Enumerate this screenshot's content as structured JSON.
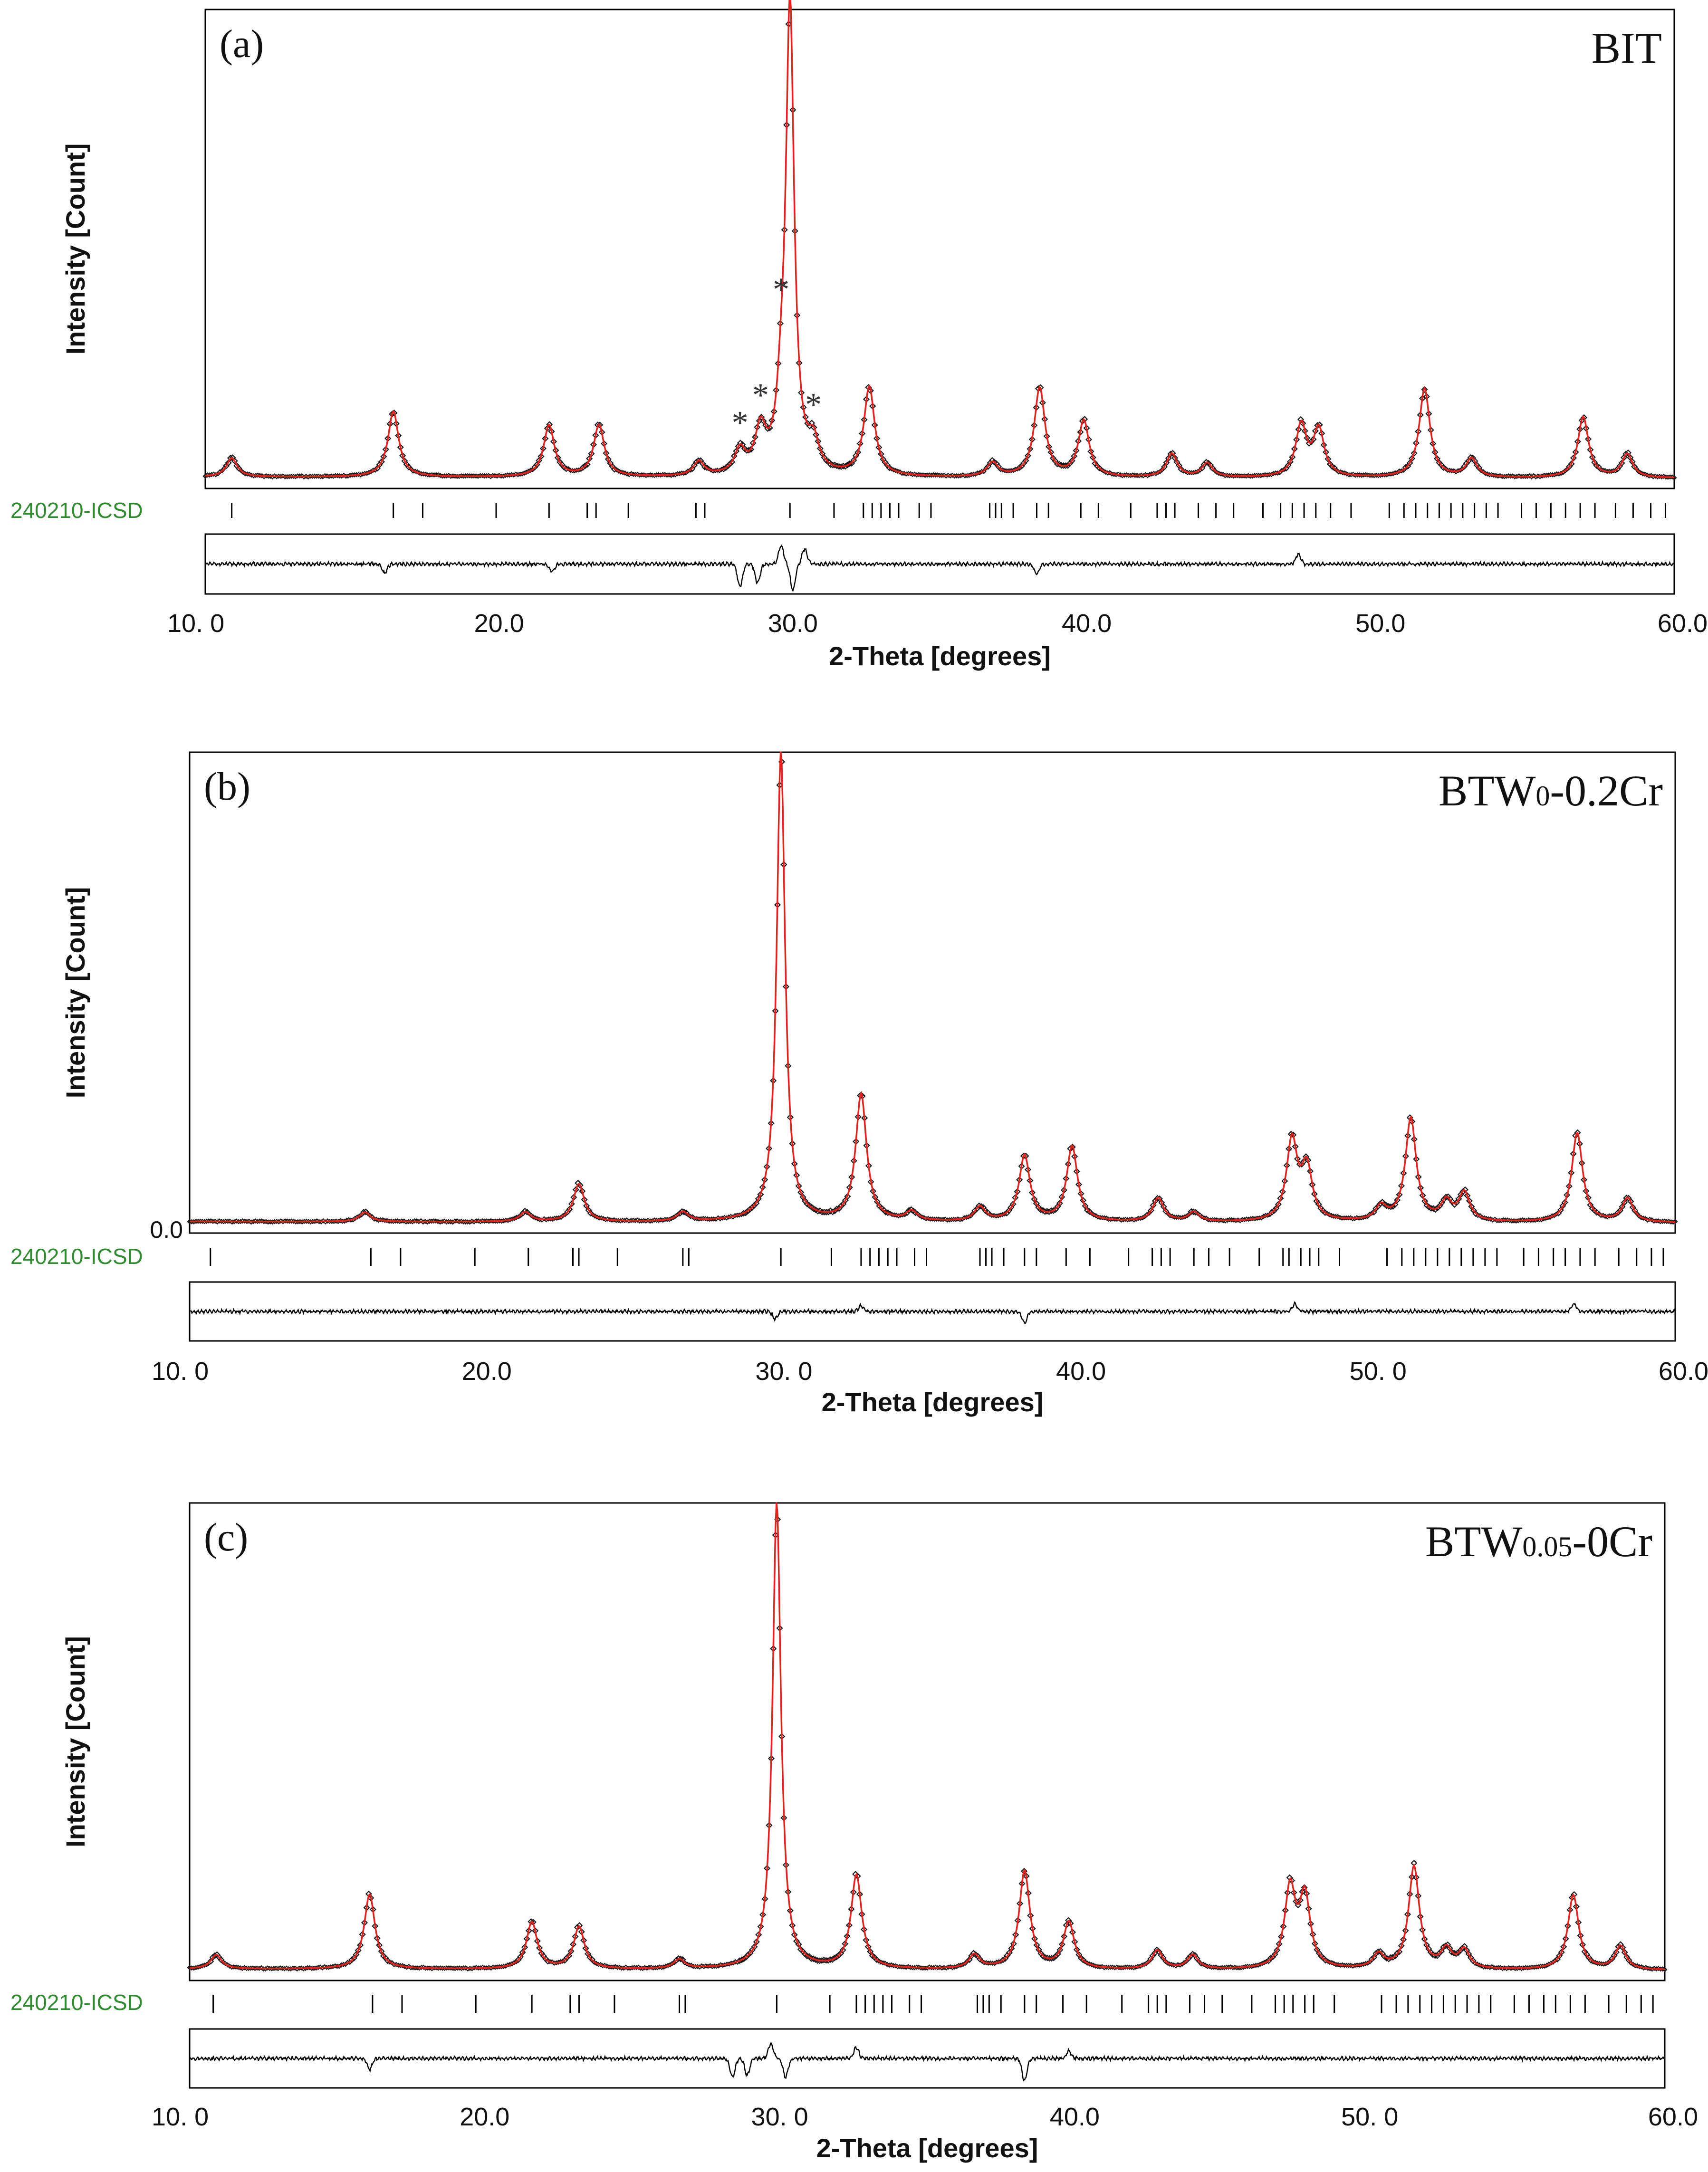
{
  "panels": [
    {
      "panel_label": "(a)",
      "sample": "BIT",
      "sample_sub": "",
      "sample_suffix": "",
      "ylabel": "Intensity [Count]",
      "xlabel": "2-Theta [degrees]",
      "phase_label": "240210-ICSD",
      "y_zero_label": "",
      "x_ticks": [
        "10. 0",
        "20.0",
        "30.0",
        "40.0",
        "50.0",
        "60.0"
      ],
      "impurity_marker": "*",
      "impurity_peaks": [
        28.2,
        28.9,
        29.6,
        30.7
      ]
    },
    {
      "panel_label": "(b)",
      "sample": "BTW",
      "sample_sub": "0",
      "sample_suffix": "-0.2Cr",
      "ylabel": "Intensity [Count]",
      "xlabel": "2-Theta [degrees]",
      "phase_label": "240210-ICSD",
      "y_zero_label": "0.0",
      "x_ticks": [
        "10. 0",
        "20.0",
        "30. 0",
        "40.0",
        "50. 0",
        "60.0"
      ],
      "impurity_marker": "",
      "impurity_peaks": []
    },
    {
      "panel_label": "(c)",
      "sample": "BTW",
      "sample_sub": "0.05",
      "sample_suffix": "-0Cr",
      "ylabel": "Intensity [Count]",
      "xlabel": "2-Theta [degrees]",
      "phase_label": "240210-ICSD",
      "y_zero_label": "",
      "x_ticks": [
        "10. 0",
        "20.0",
        "30. 0",
        "40.0",
        "50. 0",
        "60.0"
      ],
      "impurity_marker": "",
      "impurity_peaks": []
    }
  ],
  "colors": {
    "observed": "#1a1a1a",
    "calculated": "#e8201c",
    "difference": "#000000",
    "phase_label": "#2e8b2e",
    "axes": "#000000"
  },
  "chart_data": [
    {
      "type": "line",
      "title": "BIT",
      "xlabel": "2-Theta [degrees]",
      "ylabel": "Intensity [Count]",
      "xlim": [
        10,
        60
      ],
      "ylim": [
        0,
        100
      ],
      "series": [
        {
          "name": "observed",
          "style": "diamond-markers"
        },
        {
          "name": "calculated",
          "style": "line"
        },
        {
          "name": "difference",
          "style": "line"
        }
      ],
      "peaks": [
        [
          10.9,
          4
        ],
        [
          16.4,
          14
        ],
        [
          21.7,
          11
        ],
        [
          23.4,
          11
        ],
        [
          26.8,
          3
        ],
        [
          28.2,
          5
        ],
        [
          28.9,
          9
        ],
        [
          29.6,
          10
        ],
        [
          29.9,
          100
        ],
        [
          30.7,
          6
        ],
        [
          32.6,
          19
        ],
        [
          36.8,
          3
        ],
        [
          38.4,
          19
        ],
        [
          39.9,
          12
        ],
        [
          42.9,
          5
        ],
        [
          44.1,
          3
        ],
        [
          47.3,
          11
        ],
        [
          47.9,
          10
        ],
        [
          51.5,
          19
        ],
        [
          53.1,
          4
        ],
        [
          56.9,
          13
        ],
        [
          58.4,
          5
        ]
      ],
      "reflection_ticks": [
        10.9,
        16.4,
        17.4,
        19.9,
        21.7,
        23.0,
        23.3,
        24.4,
        26.7,
        27.0,
        29.9,
        31.4,
        32.4,
        32.7,
        33.0,
        33.3,
        33.6,
        34.3,
        34.7,
        36.7,
        36.9,
        37.1,
        37.5,
        38.3,
        38.7,
        39.8,
        40.4,
        41.5,
        42.4,
        42.7,
        43.0,
        43.8,
        44.4,
        45.0,
        46.0,
        46.6,
        47.0,
        47.4,
        47.8,
        48.3,
        49.0,
        50.3,
        50.8,
        51.2,
        51.6,
        52.0,
        52.4,
        52.8,
        53.2,
        53.6,
        54.0,
        54.8,
        55.3,
        55.8,
        56.3,
        56.8,
        57.3,
        58.0,
        58.6,
        59.2,
        59.7
      ],
      "difference_features": [
        [
          16.1,
          -5
        ],
        [
          21.8,
          -4
        ],
        [
          28.2,
          -12
        ],
        [
          28.8,
          -10
        ],
        [
          29.6,
          10
        ],
        [
          30.0,
          -14
        ],
        [
          30.4,
          8
        ],
        [
          38.3,
          -5
        ],
        [
          47.2,
          5
        ]
      ]
    },
    {
      "type": "line",
      "title": "BTW0-0.2Cr",
      "xlabel": "2-Theta [degrees]",
      "ylabel": "Intensity [Count]",
      "xlim": [
        10,
        60
      ],
      "ylim": [
        0,
        100
      ],
      "series": [
        {
          "name": "observed",
          "style": "diamond-markers"
        },
        {
          "name": "calculated",
          "style": "line"
        },
        {
          "name": "difference",
          "style": "line"
        }
      ],
      "peaks": [
        [
          15.9,
          2
        ],
        [
          21.3,
          2
        ],
        [
          23.1,
          8
        ],
        [
          26.6,
          2
        ],
        [
          29.9,
          100
        ],
        [
          32.6,
          27
        ],
        [
          34.3,
          2
        ],
        [
          36.6,
          3
        ],
        [
          38.1,
          14
        ],
        [
          39.7,
          16
        ],
        [
          42.6,
          5
        ],
        [
          43.8,
          2
        ],
        [
          47.1,
          17
        ],
        [
          47.6,
          11
        ],
        [
          50.1,
          3
        ],
        [
          51.1,
          22
        ],
        [
          52.3,
          4
        ],
        [
          52.9,
          6
        ],
        [
          56.7,
          19
        ],
        [
          58.4,
          5
        ]
      ],
      "reflection_ticks": [
        10.7,
        16.1,
        17.1,
        19.6,
        21.4,
        22.9,
        23.1,
        24.4,
        26.6,
        26.8,
        29.9,
        31.6,
        32.6,
        32.9,
        33.2,
        33.5,
        33.8,
        34.4,
        34.8,
        36.6,
        36.8,
        37.0,
        37.4,
        38.1,
        38.5,
        39.5,
        40.3,
        41.6,
        42.4,
        42.7,
        43.0,
        43.8,
        44.3,
        45.0,
        46.0,
        46.8,
        47.0,
        47.4,
        47.7,
        48.0,
        48.7,
        50.3,
        50.8,
        51.2,
        51.6,
        52.0,
        52.4,
        52.8,
        53.2,
        53.6,
        54.0,
        54.9,
        55.4,
        55.9,
        56.3,
        56.8,
        57.3,
        58.1,
        58.7,
        59.2,
        59.6
      ],
      "difference_features": [
        [
          29.7,
          -4
        ],
        [
          32.6,
          3
        ],
        [
          38.1,
          -6
        ],
        [
          47.2,
          4
        ],
        [
          56.6,
          4
        ]
      ]
    },
    {
      "type": "line",
      "title": "BTW0.05-0Cr",
      "xlabel": "2-Theta [degrees]",
      "ylabel": "Intensity [Count]",
      "xlim": [
        10,
        60
      ],
      "ylim": [
        0,
        100
      ],
      "series": [
        {
          "name": "observed",
          "style": "diamond-markers"
        },
        {
          "name": "calculated",
          "style": "line"
        },
        {
          "name": "difference",
          "style": "line"
        }
      ],
      "peaks": [
        [
          10.9,
          3
        ],
        [
          16.1,
          16
        ],
        [
          21.6,
          10
        ],
        [
          23.2,
          9
        ],
        [
          26.6,
          2
        ],
        [
          29.9,
          100
        ],
        [
          32.6,
          20
        ],
        [
          36.6,
          3
        ],
        [
          38.3,
          21
        ],
        [
          39.8,
          10
        ],
        [
          42.8,
          4
        ],
        [
          44.0,
          3
        ],
        [
          47.3,
          17
        ],
        [
          47.8,
          15
        ],
        [
          50.3,
          3
        ],
        [
          51.5,
          22
        ],
        [
          52.6,
          4
        ],
        [
          53.2,
          4
        ],
        [
          56.9,
          16
        ],
        [
          58.5,
          5
        ]
      ],
      "reflection_ticks": [
        10.8,
        16.2,
        17.2,
        19.7,
        21.6,
        22.9,
        23.2,
        24.4,
        26.6,
        26.8,
        29.9,
        31.7,
        32.6,
        32.9,
        33.2,
        33.5,
        33.8,
        34.4,
        34.8,
        36.7,
        36.9,
        37.1,
        37.5,
        38.3,
        38.7,
        39.6,
        40.4,
        41.6,
        42.5,
        42.8,
        43.1,
        43.9,
        44.4,
        45.0,
        46.0,
        46.8,
        47.1,
        47.4,
        47.8,
        48.1,
        48.8,
        50.4,
        50.9,
        51.3,
        51.7,
        52.1,
        52.5,
        52.9,
        53.3,
        53.7,
        54.1,
        54.9,
        55.4,
        55.9,
        56.3,
        56.8,
        57.3,
        58.1,
        58.7,
        59.2,
        59.6
      ],
      "difference_features": [
        [
          16.1,
          -6
        ],
        [
          28.4,
          -10
        ],
        [
          28.9,
          -9
        ],
        [
          29.7,
          8
        ],
        [
          30.2,
          -10
        ],
        [
          32.6,
          6
        ],
        [
          38.3,
          -12
        ],
        [
          39.8,
          4
        ]
      ]
    }
  ]
}
